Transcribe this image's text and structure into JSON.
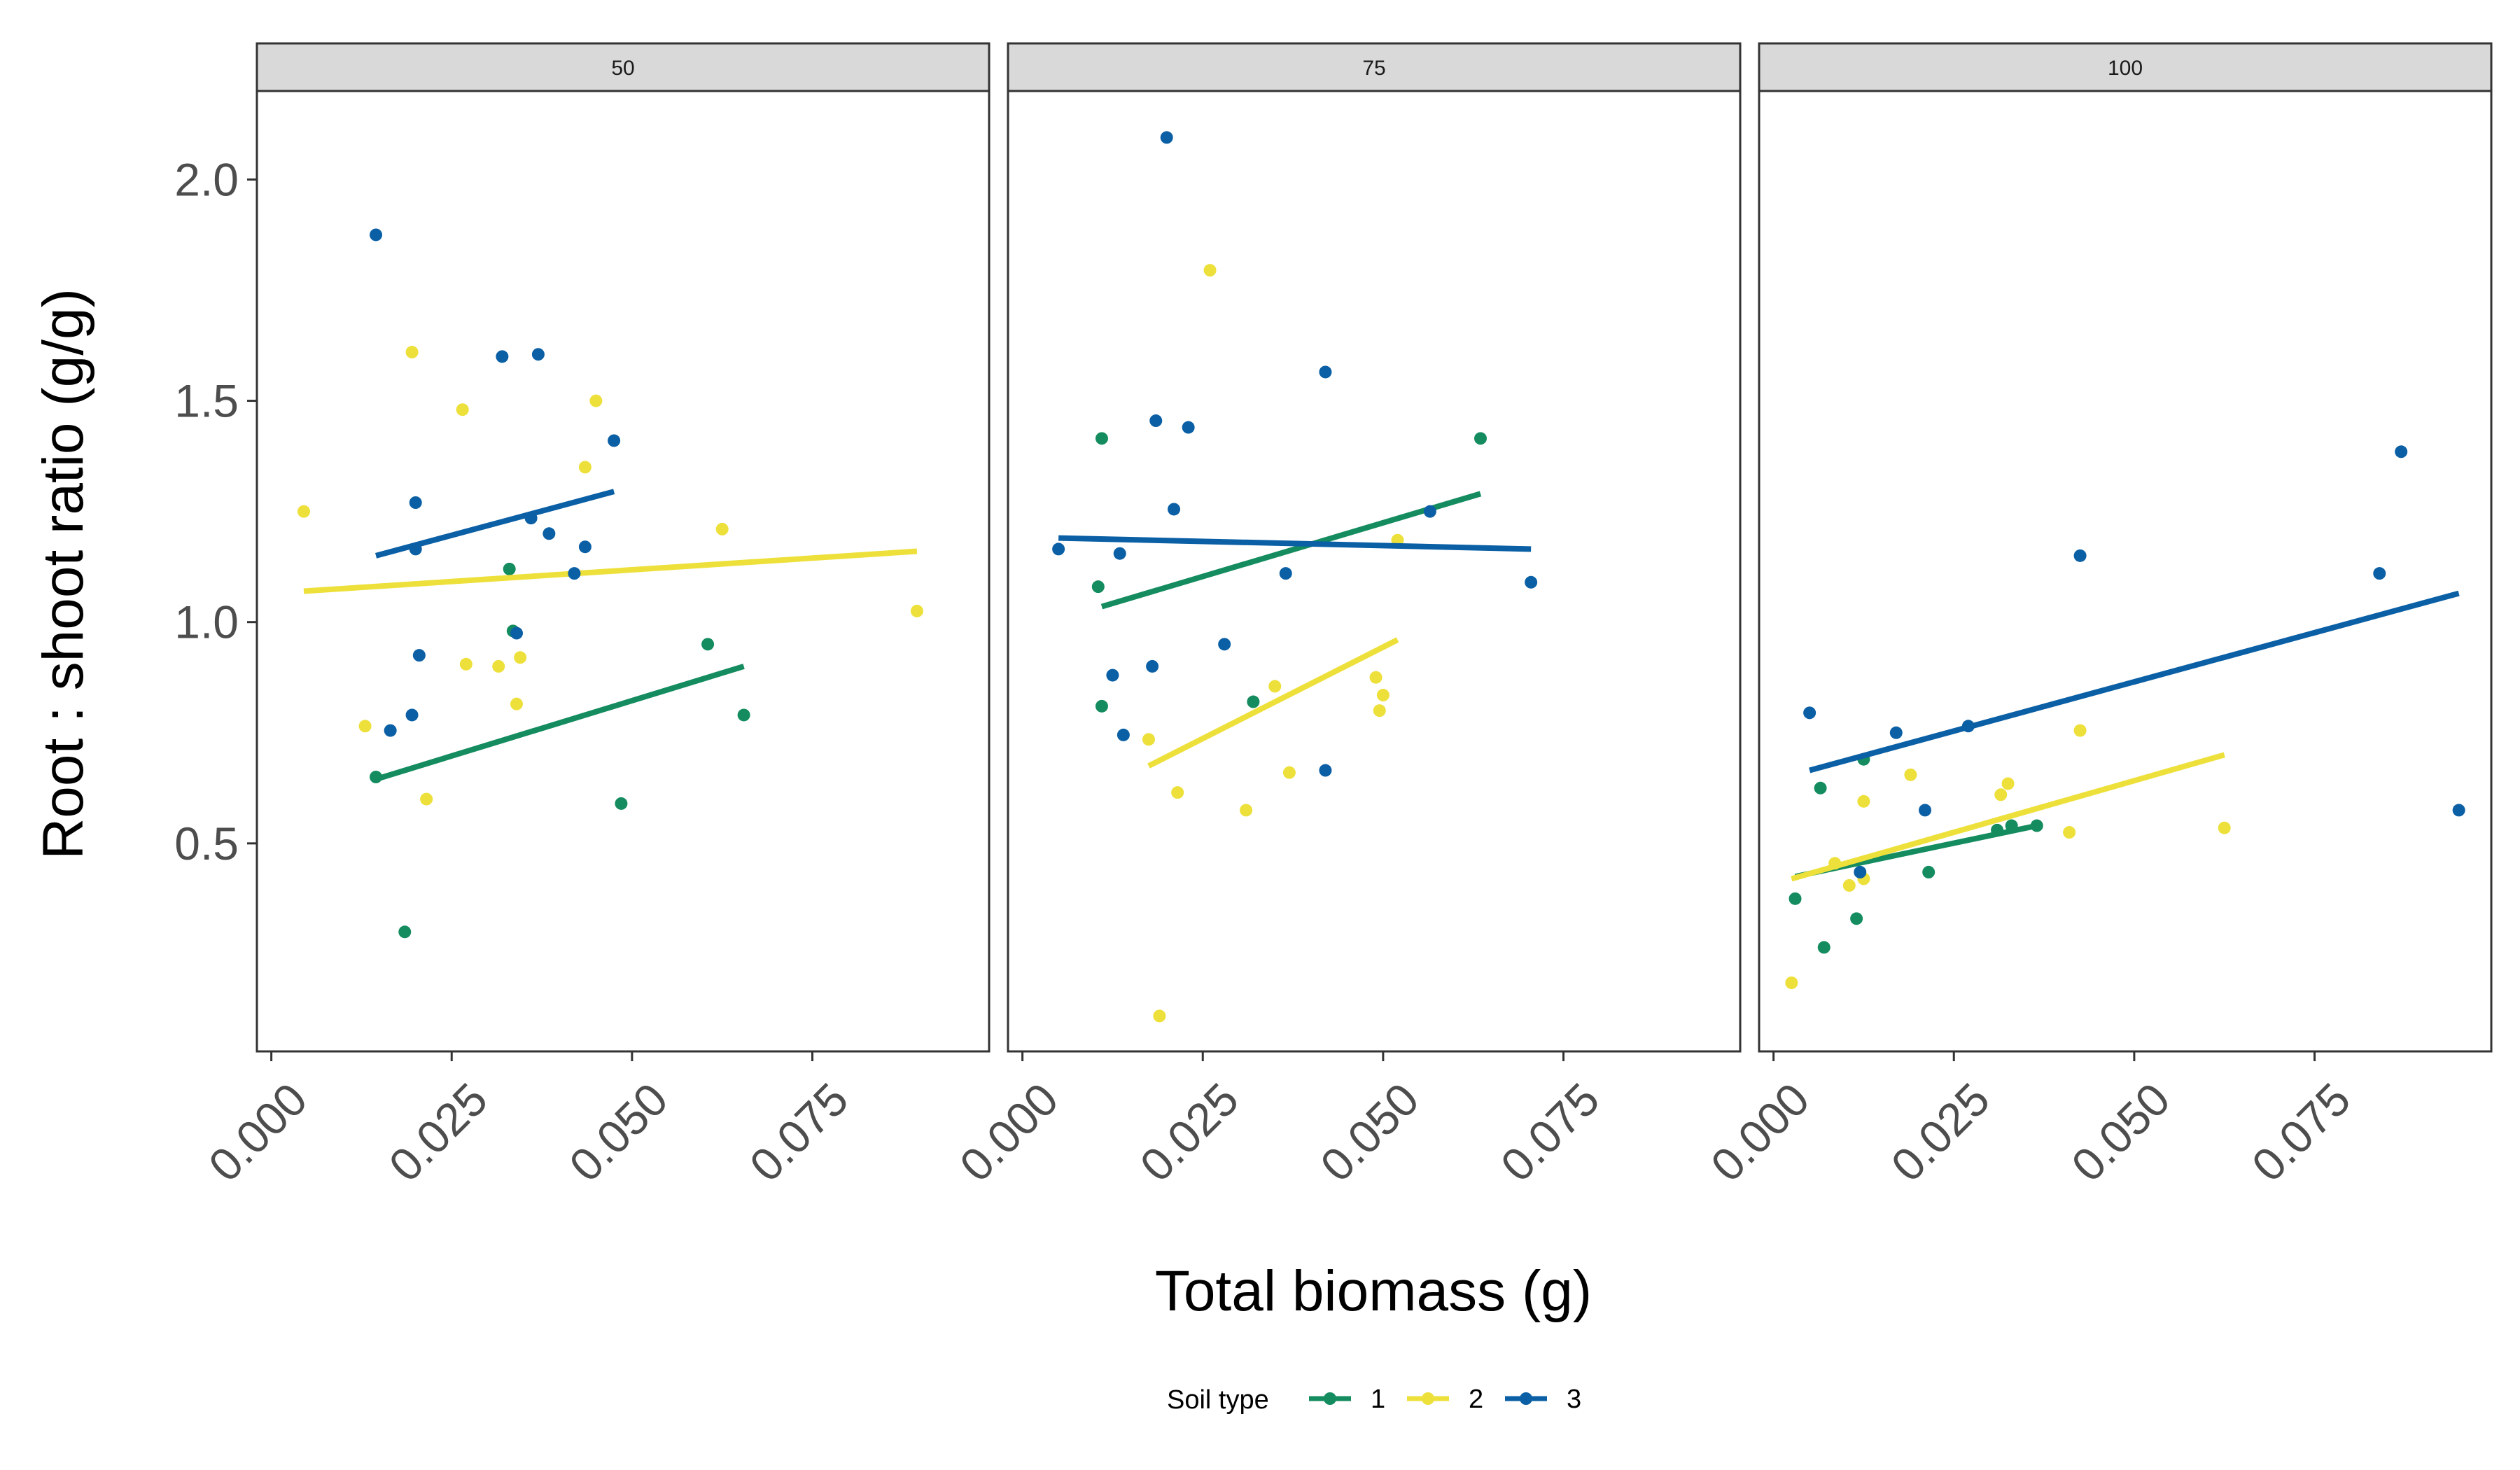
{
  "chart_data": {
    "type": "scatter",
    "xlabel": "Total biomass (g)",
    "ylabel": "Root : shoot ratio (g/g)",
    "xlim": [
      -0.002,
      0.0995
    ],
    "ylim": [
      0.03,
      2.2
    ],
    "x_ticks": [
      "0.000",
      "0.025",
      "0.050",
      "0.075"
    ],
    "x_tick_values": [
      0.0,
      0.025,
      0.05,
      0.075
    ],
    "y_ticks": [
      "0.5",
      "1.0",
      "1.5",
      "2.0"
    ],
    "y_tick_values": [
      0.5,
      1.0,
      1.5,
      2.0
    ],
    "grid": false,
    "legend": {
      "title": "Soil type",
      "position": "bottom",
      "entries": [
        {
          "label": "1",
          "color": "#148c5f"
        },
        {
          "label": "2",
          "color": "#ede03a"
        },
        {
          "label": "3",
          "color": "#0a5fa5"
        }
      ]
    },
    "panels": [
      {
        "label": "50",
        "series": [
          {
            "name": "1",
            "color": "#148c5f",
            "points": [
              [
                0.0145,
                0.65
              ],
              [
                0.0185,
                0.3
              ],
              [
                0.033,
                1.12
              ],
              [
                0.0335,
                0.98
              ],
              [
                0.0485,
                0.59
              ],
              [
                0.0605,
                0.95
              ],
              [
                0.0655,
                0.79
              ]
            ],
            "trend": [
              [
                0.0145,
                0.645
              ],
              [
                0.0655,
                0.9
              ]
            ]
          },
          {
            "name": "2",
            "color": "#ede03a",
            "points": [
              [
                0.0045,
                1.25
              ],
              [
                0.013,
                0.765
              ],
              [
                0.0195,
                1.61
              ],
              [
                0.0215,
                0.6
              ],
              [
                0.0265,
                1.48
              ],
              [
                0.027,
                0.905
              ],
              [
                0.0315,
                0.9
              ],
              [
                0.034,
                0.815
              ],
              [
                0.0345,
                0.92
              ],
              [
                0.0435,
                1.35
              ],
              [
                0.045,
                1.5
              ],
              [
                0.0625,
                1.21
              ],
              [
                0.0895,
                1.025
              ]
            ],
            "trend": [
              [
                0.0045,
                1.07
              ],
              [
                0.0895,
                1.16
              ]
            ]
          },
          {
            "name": "3",
            "color": "#0a5fa5",
            "points": [
              [
                0.0145,
                1.875
              ],
              [
                0.0165,
                0.755
              ],
              [
                0.0195,
                0.79
              ],
              [
                0.02,
                1.27
              ],
              [
                0.02,
                1.165
              ],
              [
                0.0205,
                0.925
              ],
              [
                0.032,
                1.6
              ],
              [
                0.034,
                0.975
              ],
              [
                0.036,
                1.235
              ],
              [
                0.037,
                1.605
              ],
              [
                0.0385,
                1.2
              ],
              [
                0.042,
                1.11
              ],
              [
                0.0435,
                1.17
              ],
              [
                0.0475,
                1.41
              ]
            ],
            "trend": [
              [
                0.0145,
                1.15
              ],
              [
                0.0475,
                1.295
              ]
            ]
          }
        ]
      },
      {
        "label": "75",
        "series": [
          {
            "name": "1",
            "color": "#148c5f",
            "points": [
              [
                0.0105,
                1.08
              ],
              [
                0.011,
                1.415
              ],
              [
                0.011,
                0.81
              ],
              [
                0.032,
                0.82
              ],
              [
                0.0635,
                1.415
              ]
            ],
            "trend": [
              [
                0.011,
                1.035
              ],
              [
                0.0635,
                1.29
              ]
            ]
          },
          {
            "name": "2",
            "color": "#ede03a",
            "points": [
              [
                0.0175,
                0.735
              ],
              [
                0.019,
                0.11
              ],
              [
                0.0215,
                0.615
              ],
              [
                0.026,
                1.795
              ],
              [
                0.031,
                0.575
              ],
              [
                0.035,
                0.855
              ],
              [
                0.037,
                0.66
              ],
              [
                0.049,
                0.875
              ],
              [
                0.0495,
                0.8
              ],
              [
                0.05,
                0.835
              ],
              [
                0.052,
                1.185
              ]
            ],
            "trend": [
              [
                0.0175,
                0.675
              ],
              [
                0.052,
                0.96
              ]
            ]
          },
          {
            "name": "3",
            "color": "#0a5fa5",
            "points": [
              [
                0.005,
                1.165
              ],
              [
                0.0125,
                0.88
              ],
              [
                0.0135,
                1.155
              ],
              [
                0.014,
                0.745
              ],
              [
                0.018,
                0.9
              ],
              [
                0.0185,
                1.455
              ],
              [
                0.02,
                2.095
              ],
              [
                0.021,
                1.255
              ],
              [
                0.023,
                1.44
              ],
              [
                0.028,
                0.95
              ],
              [
                0.0365,
                1.11
              ],
              [
                0.042,
                1.565
              ],
              [
                0.042,
                0.665
              ],
              [
                0.0565,
                1.25
              ],
              [
                0.0705,
                1.09
              ]
            ],
            "trend": [
              [
                0.005,
                1.19
              ],
              [
                0.0705,
                1.165
              ]
            ]
          }
        ]
      },
      {
        "label": "100",
        "series": [
          {
            "name": "1",
            "color": "#148c5f",
            "points": [
              [
                0.003,
                0.375
              ],
              [
                0.0065,
                0.625
              ],
              [
                0.007,
                0.265
              ],
              [
                0.0115,
                0.33
              ],
              [
                0.0125,
                0.69
              ],
              [
                0.0215,
                0.435
              ],
              [
                0.031,
                0.53
              ],
              [
                0.033,
                0.54
              ],
              [
                0.0365,
                0.54
              ]
            ],
            "trend": [
              [
                0.003,
                0.425
              ],
              [
                0.0365,
                0.54
              ]
            ]
          },
          {
            "name": "2",
            "color": "#ede03a",
            "points": [
              [
                0.0025,
                0.185
              ],
              [
                0.0085,
                0.455
              ],
              [
                0.0105,
                0.405
              ],
              [
                0.0125,
                0.42
              ],
              [
                0.0125,
                0.595
              ],
              [
                0.019,
                0.655
              ],
              [
                0.0315,
                0.61
              ],
              [
                0.0325,
                0.635
              ],
              [
                0.041,
                0.525
              ],
              [
                0.0425,
                0.755
              ],
              [
                0.0625,
                0.535
              ]
            ],
            "trend": [
              [
                0.0025,
                0.42
              ],
              [
                0.0625,
                0.7
              ]
            ]
          },
          {
            "name": "3",
            "color": "#0a5fa5",
            "points": [
              [
                0.005,
                0.795
              ],
              [
                0.012,
                0.435
              ],
              [
                0.017,
                0.75
              ],
              [
                0.021,
                0.575
              ],
              [
                0.027,
                0.765
              ],
              [
                0.0425,
                1.15
              ],
              [
                0.084,
                1.11
              ],
              [
                0.087,
                1.385
              ],
              [
                0.095,
                0.575
              ]
            ],
            "trend": [
              [
                0.005,
                0.665
              ],
              [
                0.095,
                1.065
              ]
            ]
          }
        ]
      }
    ]
  }
}
